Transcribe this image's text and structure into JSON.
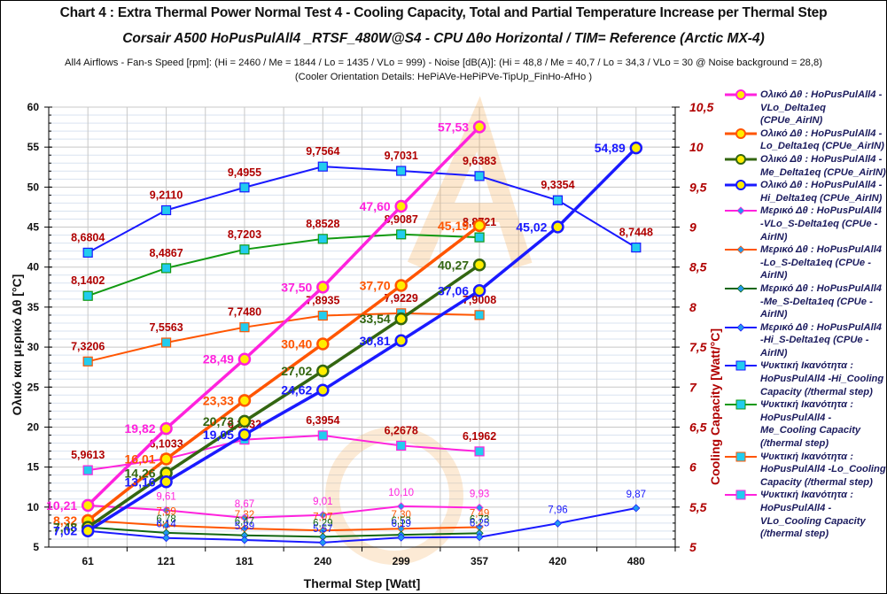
{
  "header": {
    "title": "Chart 4 :  Extra Thermal Power  Normal  Test  4  -  Cooling Capacity,  Total and Partial Temperature Increase per Thermal Step",
    "subtitle": "Corsair A500  HoPusPulAll4 _RTSF_480W@S4 - CPU  Δθο Horizontal / TIM= Reference (Arctic MX-4)",
    "info_line1": "All4  Airflows  - Fan-s Speed [rpm]: (Hi = 2460 / Me = 1844 / Lo = 1435 / VLo = 999) - Noise  [dB(A)]: (Hi = 48,8 / Me = 40,7 / Lo = 34,3 / VLo = 30 @ Noise background = 28,8)",
    "info_line2": "(Cooler Orientation Details: HePiAVe-HePiPVe-TipUp_FinHo-AfHo  )"
  },
  "chart_data": {
    "type": "line",
    "title": "Chart 4 :  Extra Thermal Power  Normal  Test  4  -  Cooling Capacity,  Total and Partial Temperature Increase per Thermal Step",
    "xlabel": "Thermal Step [Watt]",
    "ylabel": "Ολικό  και  μερικό  Δθ  [°C]",
    "y2label": "Cooling Capacity  [Watt/°C]",
    "categories": [
      "61",
      "121",
      "181",
      "240",
      "299",
      "357",
      "420",
      "480"
    ],
    "ylim": [
      5,
      60
    ],
    "yticks": [
      "5",
      "10",
      "15",
      "20",
      "25",
      "30",
      "35",
      "40",
      "45",
      "50",
      "55",
      "60"
    ],
    "y2lim": [
      5,
      10.5
    ],
    "y2ticks": [
      "5",
      "5,5",
      "6",
      "6,5",
      "7",
      "7,5",
      "8",
      "8,5",
      "9",
      "9,5",
      "10",
      "10,5"
    ],
    "grid": true,
    "legend_position": "right",
    "series": [
      {
        "name": "Ολικό Δθ : HoPusPulAll4 - VLo_Delta1eq (CPUe_AirIN)",
        "axis": "left",
        "kind": "total",
        "color": "#ff22dd",
        "values": [
          10.21,
          19.82,
          28.49,
          37.5,
          47.6,
          57.53,
          null,
          null
        ],
        "labels": [
          "10,21",
          "19,82",
          "28,49",
          "37,50",
          "47,60",
          "57,53",
          null,
          null
        ]
      },
      {
        "name": "Ολικό Δθ : HoPusPulAll4 - Lo_Delta1eq (CPUe_AirIN)",
        "axis": "left",
        "kind": "total",
        "color": "#ff5500",
        "values": [
          8.32,
          16.01,
          23.33,
          30.4,
          37.7,
          45.19,
          null,
          null
        ],
        "labels": [
          "8,32",
          "16,01",
          "23,33",
          "30,40",
          "37,70",
          "45,19",
          null,
          null
        ]
      },
      {
        "name": "Ολικό Δθ : HoPusPulAll4 - Me_Delta1eq (CPUe_AirIN)",
        "axis": "left",
        "kind": "total",
        "color": "#336611",
        "values": [
          7.48,
          14.26,
          20.73,
          27.02,
          33.54,
          40.27,
          null,
          null
        ],
        "labels": [
          "7,48",
          "14,26",
          "20,73",
          "27,02",
          "33,54",
          "40,27",
          null,
          null
        ]
      },
      {
        "name": "Ολικό Δθ : HoPusPulAll4 - Hi_Delta1eq (CPUe_AirIN)",
        "axis": "left",
        "kind": "total",
        "color": "#1a1aff",
        "values": [
          7.02,
          13.16,
          19.05,
          24.62,
          30.81,
          37.06,
          45.02,
          54.89
        ],
        "labels": [
          "7,02",
          "13,16",
          "19,05",
          "24,62",
          "30,81",
          "37,06",
          "45,02",
          "54,89"
        ]
      },
      {
        "name": "Μερικό Δθ : HoPusPulAll4 -VLo_S-Delta1eq (CPUe - AirIN)",
        "axis": "left",
        "kind": "partial",
        "color": "#ff22dd",
        "values": [
          10.21,
          9.61,
          8.67,
          9.01,
          10.1,
          9.93,
          null,
          null
        ],
        "labels": [
          null,
          "9,61",
          "8,67",
          "9,01",
          "10,10",
          "9,93",
          null,
          null
        ]
      },
      {
        "name": "Μερικό Δθ : HoPusPulAll4 -Lo_S-Delta1eq (CPUe - AirIN)",
        "axis": "left",
        "kind": "partial",
        "color": "#ff5500",
        "values": [
          8.32,
          7.69,
          7.32,
          7.07,
          7.3,
          7.49,
          null,
          null
        ],
        "labels": [
          null,
          "7,69",
          "7,32",
          "7,07",
          "7,30",
          "7,49",
          null,
          null
        ]
      },
      {
        "name": "Μερικό Δθ : HoPusPulAll4 -Me_S-Delta1eq (CPUe - AirIN)",
        "axis": "left",
        "kind": "partial",
        "color": "#116611",
        "values": [
          7.48,
          6.78,
          6.47,
          6.29,
          6.53,
          6.73,
          null,
          null
        ],
        "labels": [
          null,
          "6,78",
          "6,47",
          "6,29",
          "6,53",
          "6,73",
          null,
          null
        ]
      },
      {
        "name": "Μερικό Δθ : HoPusPulAll4 -Hi_S-Delta1eq (CPUe - AirIN)",
        "axis": "left",
        "kind": "partial",
        "color": "#1a1aff",
        "values": [
          7.02,
          6.14,
          5.89,
          5.57,
          6.19,
          6.25,
          7.96,
          9.87
        ],
        "labels": [
          null,
          "6,14",
          "5,89",
          "5,57",
          "6,19",
          "6,25",
          "7,96",
          "9,87"
        ]
      },
      {
        "name": "Ψυκτική Ικανότητα : HoPusPulAll4 -Hi_Cooling Capacity (/thermal step)",
        "axis": "right",
        "kind": "capacity",
        "color": "#1a1aff",
        "values": [
          8.6804,
          9.211,
          9.4955,
          9.7564,
          9.7031,
          9.6383,
          9.3354,
          8.7448
        ],
        "labels": [
          "8,6804",
          "9,2110",
          "9,4955",
          "9,7564",
          "9,7031",
          "9,6383",
          "9,3354",
          "8,7448"
        ]
      },
      {
        "name": "Ψυκτική Ικανότητα : HoPusPulAll4 -Me_Cooling Capacity (/thermal step)",
        "axis": "right",
        "kind": "capacity",
        "color": "#119911",
        "values": [
          8.1402,
          8.4867,
          8.7203,
          8.8528,
          8.9087,
          8.8721,
          null,
          null
        ],
        "labels": [
          "8,1402",
          "8,4867",
          "8,7203",
          "8,8528",
          "8,9087",
          "8,8721",
          null,
          null
        ]
      },
      {
        "name": "Ψυκτική Ικανότητα : HoPusPulAll4 -Lo_Cooling Capacity (/thermal step)",
        "axis": "right",
        "kind": "capacity",
        "color": "#ff5500",
        "values": [
          7.3206,
          7.5563,
          7.748,
          7.8935,
          7.9229,
          7.9008,
          null,
          null
        ],
        "labels": [
          "7,3206",
          "7,5563",
          "7,7480",
          "7,8935",
          "7,9229",
          "7,9008",
          null,
          null
        ]
      },
      {
        "name": "Ψυκτική Ικανότητα : HoPusPulAll4 -VLo_Cooling Capacity (/thermal step)",
        "axis": "right",
        "kind": "capacity",
        "color": "#ff22dd",
        "values": [
          5.9613,
          6.1033,
          6.3432,
          6.3954,
          6.2678,
          6.1962,
          null,
          null
        ],
        "labels": [
          "5,9613",
          "6,1033",
          "6,3432",
          "6,3954",
          "6,2678",
          "6,1962",
          null,
          null
        ]
      }
    ]
  },
  "legend": {
    "items": [
      "Ολικό Δθ : HoPusPulAll4 - VLo_Delta1eq (CPUe_AirIN)",
      "Ολικό Δθ : HoPusPulAll4 - Lo_Delta1eq  (CPUe_AirIN)",
      "Ολικό Δθ : HoPusPulAll4 - Me_Delta1eq (CPUe_AirIN)",
      "Ολικό Δθ : HoPusPulAll4 - Hi_Delta1eq  (CPUe_AirIN)",
      "Μερικό Δθ : HoPusPulAll4 -VLo_S-Delta1eq  (CPUe - AirIN)",
      "Μερικό Δθ : HoPusPulAll4 -Lo_S-Delta1eq  (CPUe - AirIN)",
      "Μερικό Δθ : HoPusPulAll4 -Me_S-Delta1eq  (CPUe - AirIN)",
      "Μερικό Δθ : HoPusPulAll4 -Hi_S-Delta1eq  (CPUe - AirIN)",
      "Ψυκτική Ικανότητα : HoPusPulAll4 -Hi_Cooling Capacity (/thermal step)",
      "Ψυκτική Ικανότητα : HoPusPulAll4 -Me_Cooling Capacity (/thermal step)",
      "Ψυκτική Ικανότητα : HoPusPulAll4 -Lo_Cooling Capacity (/thermal step)",
      "Ψυκτική Ικανότητα : HoPusPulAll4 -VLo_Cooling Capacity (/thermal step)"
    ]
  },
  "colors": {
    "right_axis": "#b00000",
    "grid": "#d9e3f0",
    "grid_major": "#c8c8c8",
    "marker_fill_total": "#ffee00",
    "marker_fill_capacity": "#22ccee"
  }
}
